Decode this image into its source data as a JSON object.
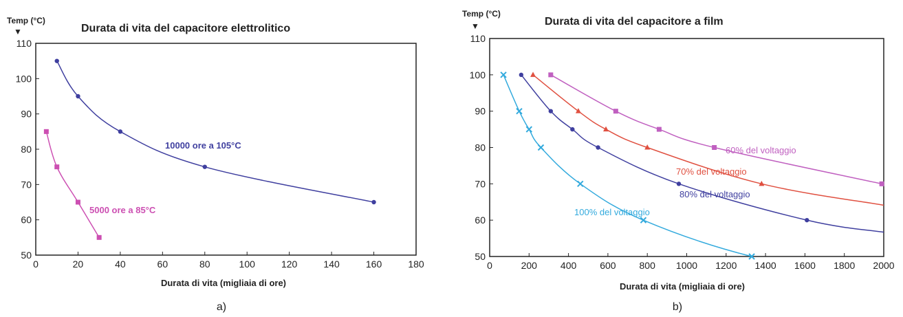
{
  "chart_data": [
    {
      "type": "line",
      "panel_label": "a)",
      "title": "Durata di vita del capacitore elettrolitico",
      "ylabel": "Temp (°C)",
      "xlabel": "Durata di vita (migliaia di ore)",
      "xlim": [
        0,
        180
      ],
      "ylim": [
        50,
        110
      ],
      "xticks": [
        "0",
        "20",
        "40",
        "60",
        "80",
        "100",
        "120",
        "140",
        "160",
        "180"
      ],
      "yticks": [
        "50",
        "60",
        "70",
        "80",
        "90",
        "100",
        "110"
      ],
      "grid": false,
      "series": [
        {
          "name": "10000 ore a 105°C",
          "color": "#3f3f9f",
          "marker": "dot",
          "points": [
            [
              10,
              105
            ],
            [
              20,
              95
            ],
            [
              40,
              85
            ],
            [
              80,
              75
            ],
            [
              160,
              65
            ]
          ]
        },
        {
          "name": "5000 ore a 85°C",
          "color": "#cc4fb2",
          "marker": "square",
          "points": [
            [
              5,
              85
            ],
            [
              10,
              75
            ],
            [
              20,
              65
            ],
            [
              30,
              55
            ]
          ]
        }
      ]
    },
    {
      "type": "line",
      "panel_label": "b)",
      "title": "Durata di vita del capacitore a film",
      "ylabel": "Temp (°C)",
      "xlabel": "Durata di vita (migliaia di ore)",
      "xlim": [
        0,
        2000
      ],
      "ylim": [
        50,
        110
      ],
      "xticks": [
        "0",
        "200",
        "400",
        "600",
        "800",
        "1000",
        "1200",
        "1400",
        "1600",
        "1800",
        "2000"
      ],
      "yticks": [
        "50",
        "60",
        "70",
        "80",
        "90",
        "100",
        "110"
      ],
      "grid": false,
      "series": [
        {
          "name": "60% del voltaggio",
          "color": "#c060c0",
          "marker": "square",
          "points": [
            [
              310,
              100
            ],
            [
              640,
              90
            ],
            [
              860,
              85
            ],
            [
              1140,
              80
            ],
            [
              1990,
              70
            ]
          ]
        },
        {
          "name": "70% del voltaggio",
          "color": "#e05040",
          "marker": "triangle",
          "points": [
            [
              220,
              100
            ],
            [
              450,
              90
            ],
            [
              590,
              85
            ],
            [
              800,
              80
            ],
            [
              1380,
              70
            ]
          ]
        },
        {
          "name": "80% del voltaggio",
          "color": "#3f3f9f",
          "marker": "dot",
          "points": [
            [
              160,
              100
            ],
            [
              310,
              90
            ],
            [
              420,
              85
            ],
            [
              550,
              80
            ],
            [
              960,
              70
            ],
            [
              1610,
              60
            ]
          ]
        },
        {
          "name": "100% del voltaggio",
          "color": "#33aadd",
          "marker": "cross",
          "points": [
            [
              70,
              100
            ],
            [
              150,
              90
            ],
            [
              200,
              85
            ],
            [
              260,
              80
            ],
            [
              460,
              70
            ],
            [
              780,
              60
            ],
            [
              1330,
              50
            ]
          ]
        }
      ]
    }
  ]
}
